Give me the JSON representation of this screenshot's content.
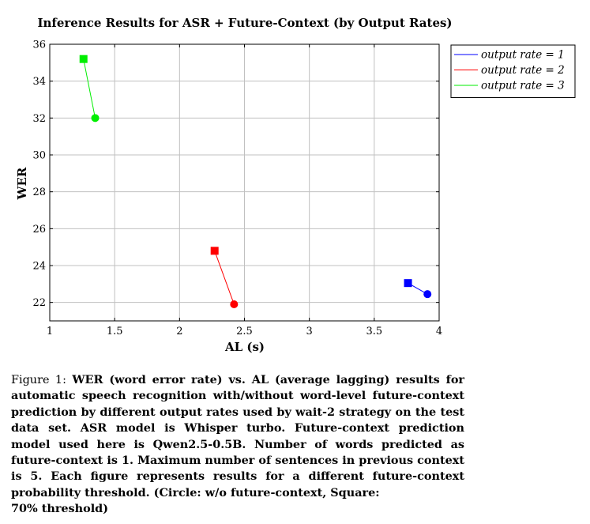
{
  "chart_data": {
    "type": "scatter",
    "title": "Inference Results for ASR + Future-Context (by Output Rates)",
    "xlabel": "AL (s)",
    "ylabel": "WER",
    "xlim": [
      1,
      4
    ],
    "ylim": [
      21,
      36
    ],
    "xticks": [
      1,
      1.5,
      2,
      2.5,
      3,
      3.5,
      4
    ],
    "xtick_labels": [
      "1",
      "1.5",
      "2",
      "2.5",
      "3",
      "3.5",
      "4"
    ],
    "yticks": [
      22,
      24,
      26,
      28,
      30,
      32,
      34,
      36
    ],
    "ytick_labels": [
      "22",
      "24",
      "26",
      "28",
      "30",
      "32",
      "34",
      "36"
    ],
    "grid": true,
    "legend_position": "outside-right-top",
    "series": [
      {
        "name": "output rate = 1",
        "color": "#0000ff",
        "points": [
          {
            "x": 3.76,
            "y": 23.05,
            "marker": "square"
          },
          {
            "x": 3.91,
            "y": 22.45,
            "marker": "circle"
          }
        ]
      },
      {
        "name": "output rate = 2",
        "color": "#ff0000",
        "points": [
          {
            "x": 2.27,
            "y": 24.8,
            "marker": "square"
          },
          {
            "x": 2.42,
            "y": 21.9,
            "marker": "circle"
          }
        ]
      },
      {
        "name": "output rate = 3",
        "color": "#00ee00",
        "points": [
          {
            "x": 1.26,
            "y": 35.2,
            "marker": "square"
          },
          {
            "x": 1.35,
            "y": 32.0,
            "marker": "circle"
          }
        ]
      }
    ]
  },
  "caption": {
    "label": "Figure 1:",
    "text": "WER (word error rate) vs. AL (average lagging) results for automatic speech recognition with/without word-level future-context prediction by different output rates used by wait-2 strategy on the test data set. ASR model is Whisper turbo. Future-context prediction model used here is Qwen2.5-0.5B. Number of words predicted as future-context is 1. Maximum number of sentences in previous context is 5. Each figure represents results for a different future-context probability threshold. (Circle: w/o future-context, Square:",
    "last_line": "70% threshold)"
  }
}
